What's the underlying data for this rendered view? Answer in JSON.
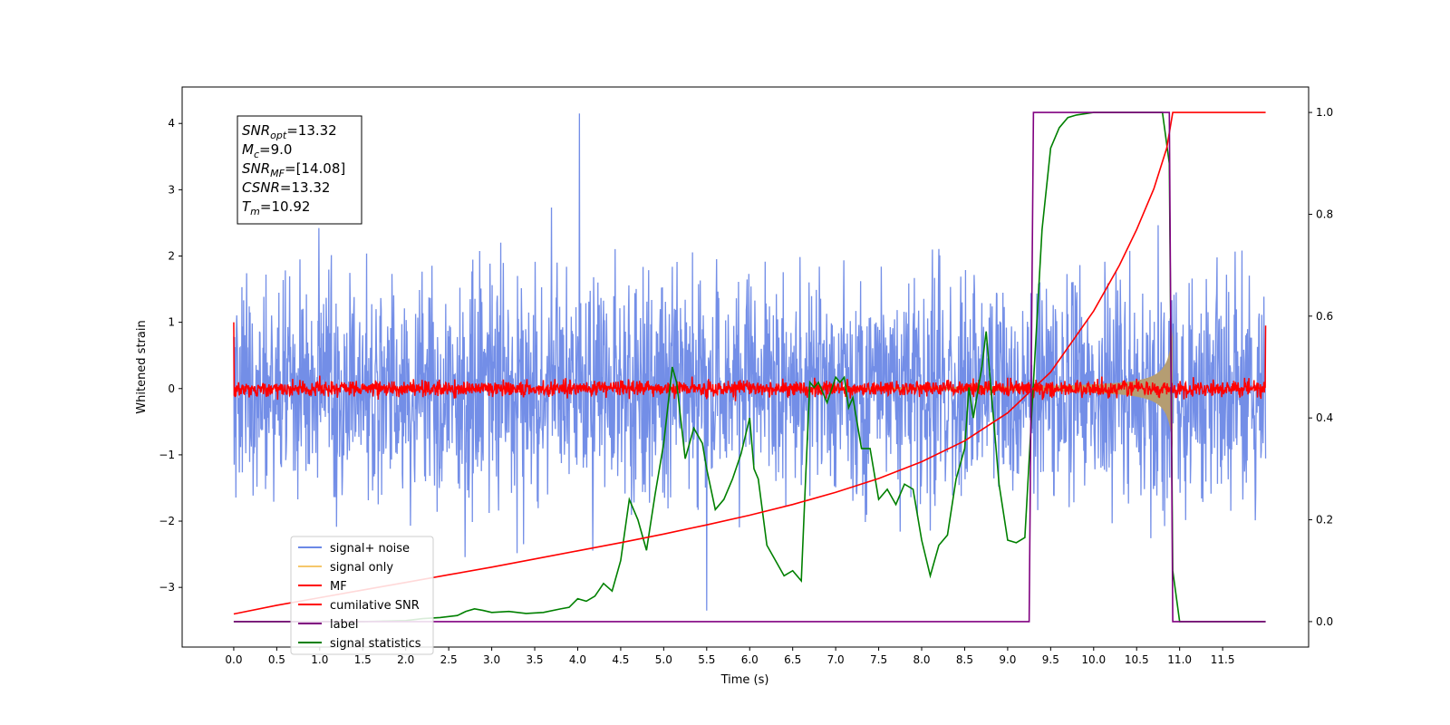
{
  "chart_data": {
    "type": "line",
    "xlabel": "Time (s)",
    "ylabel": "Whitened strain",
    "xlim": [
      -0.6,
      12.5
    ],
    "ylim": [
      -3.9,
      4.55
    ],
    "y2lim": [
      -0.05,
      1.05
    ],
    "x_ticks": [
      0.0,
      0.5,
      1.0,
      1.5,
      2.0,
      2.5,
      3.0,
      3.5,
      4.0,
      4.5,
      5.0,
      5.5,
      6.0,
      6.5,
      7.0,
      7.5,
      8.0,
      8.5,
      9.0,
      9.5,
      10.0,
      10.5,
      11.0,
      11.5
    ],
    "x_tick_labels": [
      "0.0",
      "0.5",
      "1.0",
      "1.5",
      "2.0",
      "2.5",
      "3.0",
      "3.5",
      "4.0",
      "4.5",
      "5.0",
      "5.5",
      "6.0",
      "6.5",
      "7.0",
      "7.5",
      "8.0",
      "8.5",
      "9.0",
      "9.5",
      "10.0",
      "10.5",
      "11.0",
      "11.5"
    ],
    "y_ticks": [
      -3,
      -2,
      -1,
      0,
      1,
      2,
      3,
      4
    ],
    "y_tick_labels": [
      "−3",
      "−2",
      "−1",
      "0",
      "1",
      "2",
      "3",
      "4"
    ],
    "y2_ticks": [
      0.0,
      0.2,
      0.4,
      0.6,
      0.8,
      1.0
    ],
    "y2_tick_labels": [
      "0.0",
      "0.2",
      "0.4",
      "0.6",
      "0.8",
      "1.0"
    ],
    "grid": false,
    "legend_position": "lower-left",
    "annotation": {
      "lines": [
        {
          "base": "SNR",
          "sub": "opt",
          "value": "=13.32"
        },
        {
          "base": "M",
          "sub": "c",
          "value": "=9.0"
        },
        {
          "base": "SNR",
          "sub": "MF",
          "value": "=[14.08]"
        },
        {
          "base": "CSNR",
          "sub": "",
          "value": "=13.32"
        },
        {
          "base": "T",
          "sub": "m",
          "value": "=10.92"
        }
      ]
    },
    "series": [
      {
        "name": "signal+ noise",
        "axis": "left",
        "color": "#6b88e6",
        "kind": "noise-band",
        "x_range": [
          0.0,
          12.0
        ],
        "std": 0.85,
        "peak_max": 4.15,
        "peak_min": -3.35
      },
      {
        "name": "signal only",
        "axis": "left",
        "color": "#f5c76b",
        "kind": "chirp-envelope",
        "x_range": [
          0.0,
          10.92
        ],
        "amplitude_at_end": 0.92
      },
      {
        "name": "MF",
        "axis": "left",
        "color": "#ff0000",
        "kind": "noise-band",
        "x_range": [
          0.0,
          12.0
        ],
        "std": 0.06,
        "edge_values": [
          1.0,
          0.95
        ]
      },
      {
        "name": "cumilative SNR",
        "axis": "right",
        "color": "#ff0000",
        "kind": "line",
        "x": [
          0.0,
          0.5,
          1.0,
          1.5,
          2.0,
          2.5,
          3.0,
          3.5,
          4.0,
          4.5,
          5.0,
          5.5,
          6.0,
          6.5,
          7.0,
          7.5,
          8.0,
          8.5,
          9.0,
          9.5,
          10.0,
          10.3,
          10.5,
          10.7,
          10.85,
          10.92,
          12.0
        ],
        "y": [
          0.015,
          0.032,
          0.047,
          0.062,
          0.077,
          0.092,
          0.107,
          0.123,
          0.139,
          0.155,
          0.172,
          0.19,
          0.209,
          0.23,
          0.254,
          0.281,
          0.314,
          0.355,
          0.41,
          0.49,
          0.61,
          0.7,
          0.77,
          0.85,
          0.93,
          1.0,
          1.0
        ]
      },
      {
        "name": "label",
        "axis": "right",
        "color": "#800080",
        "kind": "line",
        "x": [
          0.0,
          9.25,
          9.3,
          10.88,
          10.92,
          12.0
        ],
        "y": [
          0.0,
          0.0,
          1.0,
          1.0,
          0.0,
          0.0
        ]
      },
      {
        "name": "signal statistics",
        "axis": "right",
        "color": "#008000",
        "kind": "line",
        "x": [
          0.0,
          0.5,
          1.0,
          1.5,
          2.0,
          2.2,
          2.4,
          2.6,
          2.7,
          2.8,
          2.9,
          3.0,
          3.2,
          3.4,
          3.6,
          3.8,
          3.9,
          4.0,
          4.1,
          4.2,
          4.3,
          4.4,
          4.5,
          4.6,
          4.7,
          4.8,
          4.9,
          5.0,
          5.1,
          5.15,
          5.25,
          5.35,
          5.45,
          5.5,
          5.6,
          5.7,
          5.8,
          5.9,
          6.0,
          6.05,
          6.1,
          6.2,
          6.3,
          6.4,
          6.5,
          6.6,
          6.65,
          6.7,
          6.75,
          6.8,
          6.9,
          7.0,
          7.05,
          7.1,
          7.15,
          7.2,
          7.3,
          7.4,
          7.5,
          7.6,
          7.7,
          7.8,
          7.9,
          8.0,
          8.1,
          8.2,
          8.3,
          8.4,
          8.5,
          8.55,
          8.6,
          8.7,
          8.75,
          8.8,
          8.9,
          9.0,
          9.1,
          9.2,
          9.3,
          9.4,
          9.5,
          9.6,
          9.7,
          9.8,
          10.0,
          10.2,
          10.5,
          10.8,
          10.88,
          10.92,
          11.0,
          12.0
        ],
        "y": [
          0.0,
          0.0,
          0.0,
          0.0,
          0.002,
          0.006,
          0.008,
          0.012,
          0.02,
          0.025,
          0.022,
          0.018,
          0.02,
          0.016,
          0.018,
          0.025,
          0.028,
          0.045,
          0.04,
          0.05,
          0.075,
          0.06,
          0.12,
          0.24,
          0.2,
          0.14,
          0.25,
          0.35,
          0.5,
          0.47,
          0.32,
          0.38,
          0.35,
          0.3,
          0.22,
          0.24,
          0.28,
          0.33,
          0.4,
          0.3,
          0.28,
          0.15,
          0.12,
          0.09,
          0.1,
          0.08,
          0.28,
          0.47,
          0.46,
          0.47,
          0.43,
          0.48,
          0.47,
          0.48,
          0.42,
          0.44,
          0.34,
          0.34,
          0.24,
          0.26,
          0.23,
          0.27,
          0.26,
          0.16,
          0.09,
          0.15,
          0.17,
          0.28,
          0.34,
          0.46,
          0.4,
          0.5,
          0.57,
          0.47,
          0.27,
          0.16,
          0.155,
          0.165,
          0.47,
          0.77,
          0.93,
          0.97,
          0.99,
          0.995,
          1.0,
          1.0,
          1.0,
          1.0,
          0.9,
          0.1,
          0.0,
          0.0
        ]
      }
    ]
  }
}
